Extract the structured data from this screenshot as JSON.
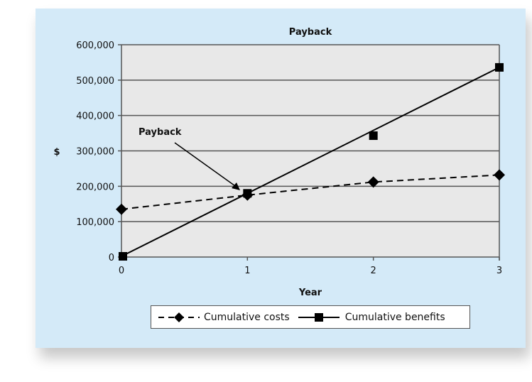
{
  "chart_data": {
    "type": "line",
    "title": "Payback",
    "xlabel": "Year",
    "ylabel": "$",
    "x": [
      0,
      1,
      2,
      3
    ],
    "xticks": [
      "0",
      "1",
      "2",
      "3"
    ],
    "ylim": [
      0,
      600000
    ],
    "yticks": [
      "0",
      "100,000",
      "200,000",
      "300,000",
      "400,000",
      "500,000",
      "600,000"
    ],
    "ytick_values": [
      0,
      100000,
      200000,
      300000,
      400000,
      500000,
      600000
    ],
    "grid": true,
    "legend_position": "bottom",
    "series": [
      {
        "name": "Cumulative costs",
        "values": [
          135000,
          175000,
          212000,
          232000
        ],
        "style": "dashed",
        "marker": "diamond",
        "color": "#000000"
      },
      {
        "name": "Cumulative benefits",
        "values": [
          2000,
          180000,
          343000,
          536000
        ],
        "style": "solid",
        "marker": "square",
        "color": "#000000"
      }
    ],
    "annotations": [
      {
        "text": "Payback",
        "x": 1,
        "y": 180000
      }
    ]
  },
  "colors": {
    "panel": "#d4eaf8",
    "plot": "#e8e8e8",
    "grid": "#555555"
  }
}
